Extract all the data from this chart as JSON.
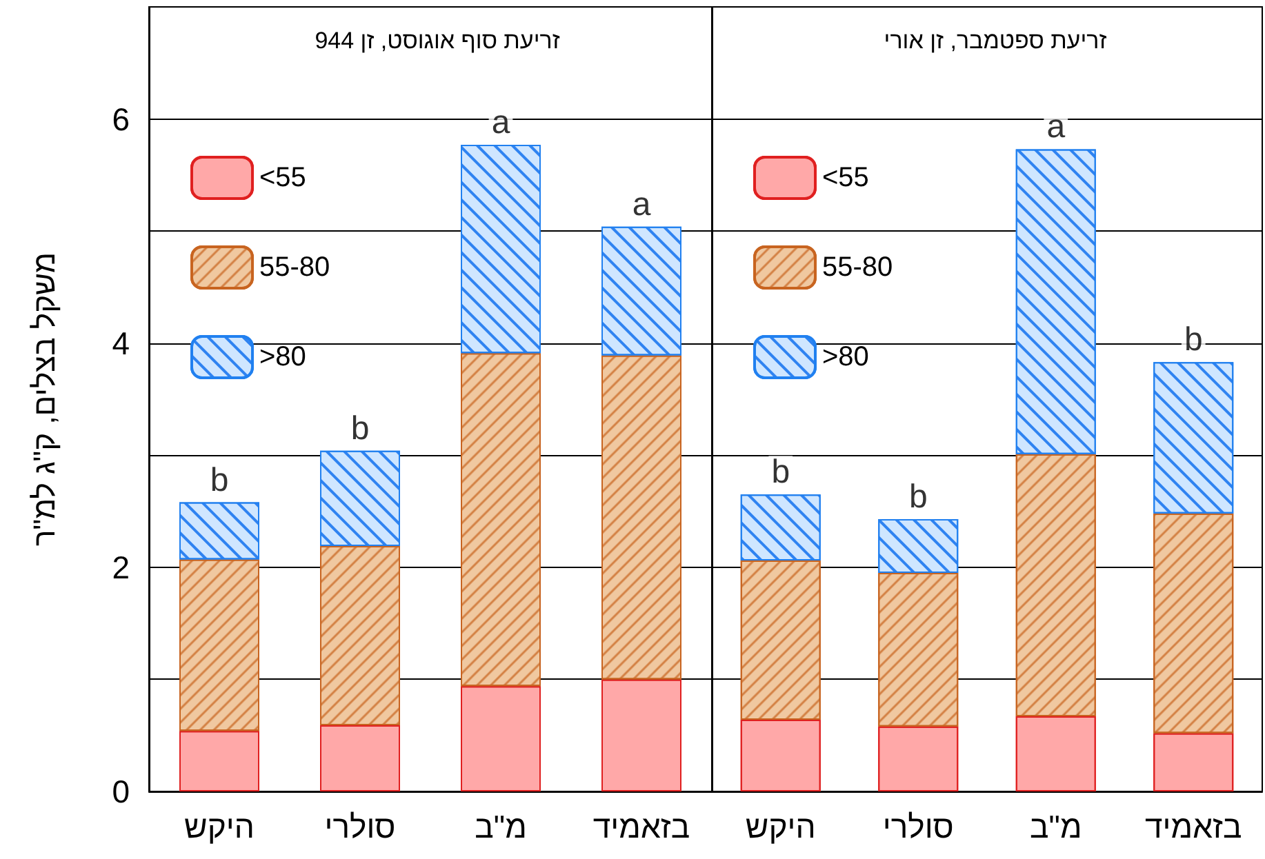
{
  "chart_data": [
    {
      "type": "bar",
      "stacked": true,
      "title": "זריעת סוף אוגוסט, זן 944",
      "ylabel": "משקל בצלים, ק\"ג למ\"ר",
      "categories": [
        "היקש",
        "סולרי",
        "מ\"ב",
        "בזאמיד"
      ],
      "series": [
        {
          "name": "<55",
          "color": "#ffa8a8",
          "values": [
            0.54,
            0.59,
            0.94,
            1.0
          ]
        },
        {
          "name": "55-80",
          "color": "#f0c8a0",
          "values": [
            1.53,
            1.6,
            2.97,
            2.89
          ]
        },
        {
          "name": ">80",
          "color": "#cfe6ff",
          "values": [
            0.51,
            0.85,
            1.86,
            1.15
          ]
        }
      ],
      "ylim": [
        0,
        7
      ],
      "yticks": [
        0,
        {
          "value": 1,
          "label": null
        },
        2,
        {
          "value": 3,
          "label": null
        },
        4,
        {
          "value": 5,
          "label": null
        },
        6
      ],
      "grid": "y",
      "legend": "top left",
      "annotations": [
        {
          "text": "b",
          "x": "היקש",
          "y": 2.58
        },
        {
          "text": "b",
          "x": "סולרי",
          "y": 3.04
        },
        {
          "text": "a",
          "x": "מ\"ב",
          "y": 5.77
        },
        {
          "text": "a",
          "x": "בזאמיד",
          "y": 5.04
        }
      ]
    },
    {
      "type": "bar",
      "stacked": true,
      "title": "זריעת ספטמבר, זן אורי",
      "categories": [
        "היקש",
        "סולרי",
        "מ\"ב",
        "בזאמיד"
      ],
      "series": [
        {
          "name": "<55",
          "color": "#ffa8a8",
          "values": [
            0.64,
            0.58,
            0.67,
            0.52
          ]
        },
        {
          "name": "55-80",
          "color": "#f0c8a0",
          "values": [
            1.42,
            1.37,
            2.34,
            1.96
          ]
        },
        {
          "name": ">80",
          "color": "#cfe6ff",
          "values": [
            0.59,
            0.48,
            2.72,
            1.35
          ]
        }
      ],
      "ylim": [
        0,
        7
      ],
      "yticks": [
        0,
        {
          "value": 1,
          "label": null
        },
        2,
        {
          "value": 3,
          "label": null
        },
        4,
        {
          "value": 5,
          "label": null
        },
        6
      ],
      "grid": "y",
      "legend": "top left",
      "tick_labels": "x",
      "annotations": [
        {
          "text": "b",
          "x": "היקש",
          "y": 2.65
        },
        {
          "text": "b",
          "x": "סולרי",
          "y": 2.43
        },
        {
          "text": "a",
          "x": "מ\"ב",
          "y": 5.73
        },
        {
          "text": "b",
          "x": "בזאמיד",
          "y": 3.83
        }
      ]
    }
  ]
}
